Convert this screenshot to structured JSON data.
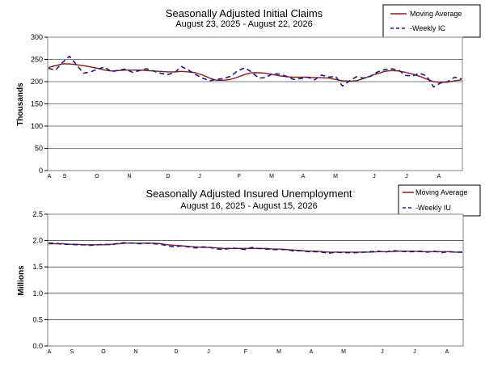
{
  "chart_data": [
    {
      "type": "line",
      "title": "Seasonally Adjusted Initial Claims",
      "subtitle": "August 23, 2025 - August 22, 2026",
      "xlabel": "",
      "ylabel": "Thousands",
      "ylim": [
        0,
        300
      ],
      "yticks": [
        0,
        50,
        100,
        150,
        200,
        250,
        300
      ],
      "month_ticks": [
        "A",
        "S",
        "O",
        "N",
        "D",
        "J",
        "F",
        "M",
        "A",
        "M",
        "J",
        "J",
        "A"
      ],
      "grid": true,
      "legend": "top-right",
      "series": [
        {
          "name": "Moving Average",
          "color": "#8b1a1a",
          "style": "solid",
          "values": [
            232,
            236,
            240,
            240,
            238,
            236,
            233,
            230,
            226,
            224,
            225,
            226,
            226,
            226,
            225,
            224,
            223,
            222,
            222,
            223,
            222,
            220,
            215,
            208,
            203,
            203,
            205,
            210,
            216,
            220,
            220,
            219,
            216,
            213,
            211,
            210,
            210,
            210,
            209,
            209,
            208,
            205,
            202,
            201,
            202,
            207,
            213,
            218,
            223,
            225,
            224,
            221,
            217,
            212,
            206,
            200,
            198,
            199,
            202,
            204
          ]
        },
        {
          "name": "-Weekly IC",
          "color": "#1a1a8b",
          "style": "dashed",
          "values": [
            230,
            226,
            243,
            257,
            238,
            219,
            222,
            228,
            233,
            222,
            226,
            228,
            221,
            225,
            229,
            224,
            219,
            216,
            220,
            234,
            226,
            216,
            208,
            202,
            205,
            207,
            212,
            224,
            231,
            222,
            208,
            209,
            218,
            217,
            212,
            205,
            207,
            210,
            204,
            215,
            210,
            212,
            190,
            202,
            211,
            208,
            212,
            222,
            227,
            229,
            226,
            214,
            213,
            219,
            213,
            188,
            197,
            200,
            210,
            206
          ]
        }
      ]
    },
    {
      "type": "line",
      "title": "Seasonally Adjusted Insured Unemployment",
      "subtitle": "August 16, 2025 - August 15, 2026",
      "xlabel": "",
      "ylabel": "Millions",
      "ylim": [
        0,
        2.5
      ],
      "yticks": [
        "0.0",
        "0.5",
        "1.0",
        "1.5",
        "2.0",
        "2.5"
      ],
      "month_ticks": [
        "A",
        "S",
        "O",
        "N",
        "D",
        "J",
        "F",
        "M",
        "A",
        "M",
        "J",
        "J",
        "A"
      ],
      "grid": true,
      "legend": "top-right",
      "series": [
        {
          "name": "Moving Average",
          "color": "#8b1a1a",
          "style": "solid",
          "values": [
            1.94,
            1.94,
            1.94,
            1.93,
            1.93,
            1.92,
            1.92,
            1.92,
            1.92,
            1.93,
            1.94,
            1.95,
            1.95,
            1.95,
            1.95,
            1.95,
            1.94,
            1.92,
            1.91,
            1.9,
            1.89,
            1.88,
            1.87,
            1.87,
            1.86,
            1.85,
            1.85,
            1.85,
            1.85,
            1.85,
            1.85,
            1.85,
            1.84,
            1.84,
            1.83,
            1.82,
            1.81,
            1.8,
            1.8,
            1.79,
            1.78,
            1.78,
            1.78,
            1.78,
            1.78,
            1.78,
            1.78,
            1.79,
            1.79,
            1.79,
            1.8,
            1.8,
            1.8,
            1.79,
            1.79,
            1.79,
            1.79,
            1.79,
            1.78,
            1.78
          ]
        },
        {
          "name": "-Weekly IU",
          "color": "#1a1a8b",
          "style": "dashed",
          "values": [
            1.95,
            1.95,
            1.93,
            1.93,
            1.92,
            1.92,
            1.91,
            1.92,
            1.93,
            1.92,
            1.95,
            1.96,
            1.95,
            1.94,
            1.95,
            1.94,
            1.93,
            1.9,
            1.88,
            1.9,
            1.88,
            1.86,
            1.88,
            1.87,
            1.84,
            1.83,
            1.86,
            1.85,
            1.83,
            1.87,
            1.85,
            1.84,
            1.83,
            1.83,
            1.83,
            1.8,
            1.81,
            1.79,
            1.79,
            1.78,
            1.76,
            1.78,
            1.77,
            1.77,
            1.77,
            1.78,
            1.79,
            1.8,
            1.78,
            1.81,
            1.8,
            1.79,
            1.79,
            1.8,
            1.78,
            1.8,
            1.77,
            1.79,
            1.78,
            1.78
          ]
        }
      ]
    }
  ]
}
